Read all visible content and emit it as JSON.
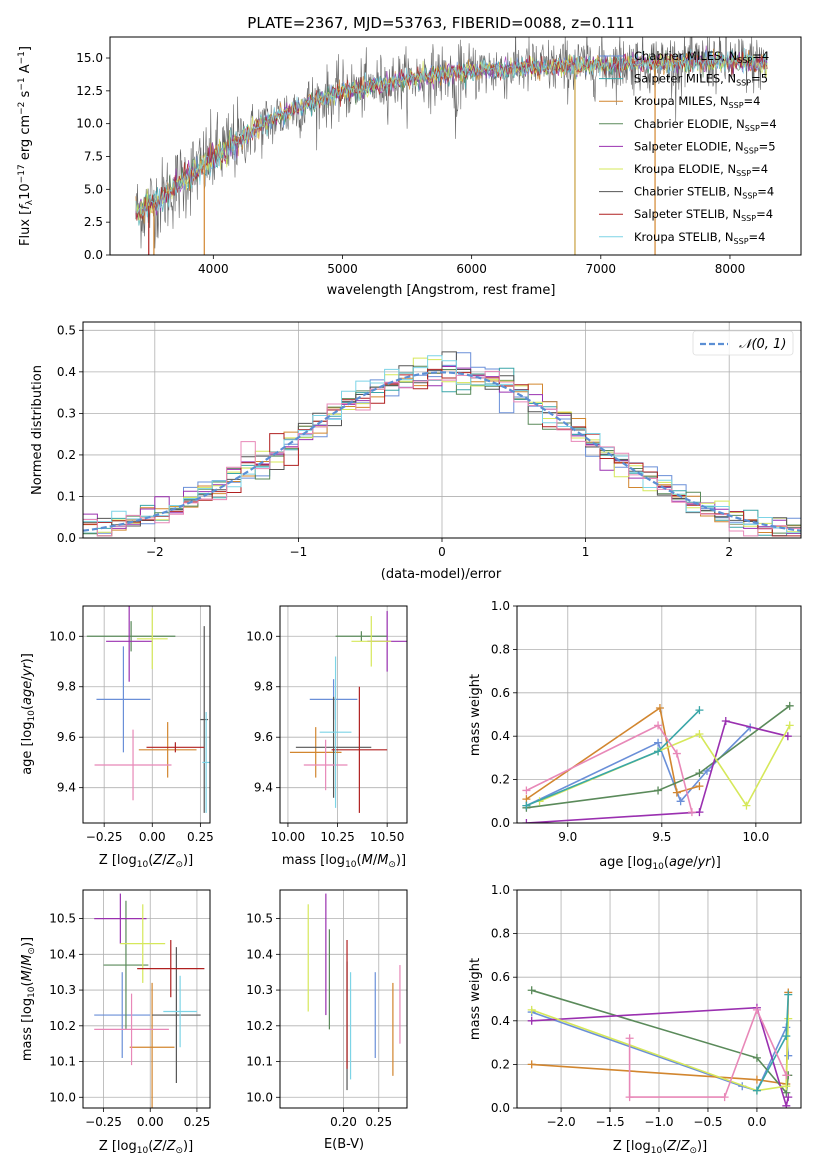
{
  "figure": {
    "title": "PLATE=2367, MJD=53763, FIBERID=0088, z=0.111"
  },
  "chart_data": [
    {
      "type": "line",
      "id": "spectrum",
      "xlabel": "wavelength [Angstrom, rest frame]",
      "ylabel": "Flux [f_λ 10^-17 erg cm^-2 s^-1 A^-1]",
      "xlim": [
        3200,
        8550
      ],
      "ylim": [
        0,
        16.6
      ],
      "xticks": [
        4000,
        5000,
        6000,
        7000,
        8000
      ],
      "yticks": [
        0.0,
        2.5,
        5.0,
        7.5,
        10.0,
        12.5,
        15.0
      ],
      "grid": false,
      "legend_position": "top-right",
      "series": [
        {
          "name": "Chabrier MILES, N_SSP=4",
          "color": "#6a8fd8"
        },
        {
          "name": "Salpeter MILES, N_SSP=5",
          "color": "#3aa6a8"
        },
        {
          "name": "Kroupa MILES, N_SSP=4",
          "color": "#d2862f"
        },
        {
          "name": "Chabrier ELODIE, N_SSP=4",
          "color": "#5a8a5a"
        },
        {
          "name": "Salpeter ELODIE, N_SSP=5",
          "color": "#9a30b0"
        },
        {
          "name": "Kroupa ELODIE, N_SSP=4",
          "color": "#d6e85a"
        },
        {
          "name": "Chabrier STELIB, N_SSP=4",
          "color": "#555555"
        },
        {
          "name": "Salpeter STELIB, N_SSP=4",
          "color": "#b02020"
        },
        {
          "name": "Kroupa STELIB, N_SSP=4",
          "color": "#7dd4e6"
        }
      ],
      "continuum": {
        "x": [
          3400,
          3600,
          3800,
          4000,
          4200,
          4400,
          4600,
          4800,
          5000,
          5200,
          5400,
          5600,
          5800,
          6000,
          6200,
          6400,
          6600,
          6800,
          7000,
          7200,
          7400,
          7600,
          7800,
          8000,
          8200,
          8300
        ],
        "y": [
          3.2,
          4.3,
          6.0,
          7.4,
          8.8,
          10.0,
          11.0,
          11.8,
          12.4,
          12.8,
          13.2,
          13.5,
          13.8,
          14.0,
          14.1,
          14.3,
          14.3,
          14.4,
          14.5,
          14.6,
          14.6,
          14.6,
          14.7,
          14.7,
          14.6,
          14.5
        ]
      },
      "dips": [
        3500,
        3540,
        3930,
        6800,
        7420
      ]
    },
    {
      "type": "histogram",
      "id": "residuals",
      "xlabel": "(data-model)/error",
      "ylabel": "Normed distribution",
      "xlim": [
        -2.5,
        2.5
      ],
      "ylim": [
        0,
        0.52
      ],
      "xticks": [
        -2,
        -1,
        0,
        1,
        2
      ],
      "yticks": [
        0.0,
        0.1,
        0.2,
        0.3,
        0.4,
        0.5
      ],
      "grid": true,
      "bin_width": 0.1,
      "reference": {
        "name": "N(0,1)",
        "color": "#5b8fd4"
      },
      "legend_position": "top-right"
    },
    {
      "type": "scatter",
      "id": "age-vs-z",
      "xlabel": "Z [log10(Z/Z_sun)]",
      "ylabel": "age [log10(age/yr)]",
      "xlim": [
        -0.36,
        0.3
      ],
      "ylim": [
        9.26,
        10.12
      ],
      "xticks": [
        -0.25,
        0.0,
        0.25
      ],
      "yticks": [
        9.4,
        9.6,
        9.8,
        10.0
      ],
      "grid": true,
      "points": [
        {
          "color": "#6a8fd8",
          "x": -0.15,
          "xerr": 0.14,
          "y": 9.75,
          "yerr": 0.21
        },
        {
          "color": "#d2862f",
          "x": 0.08,
          "xerr": 0.15,
          "y": 9.55,
          "yerr": 0.11
        },
        {
          "color": "#5a8a5a",
          "x": -0.11,
          "xerr": 0.23,
          "y": 10.0,
          "yerr": 0.06
        },
        {
          "color": "#9a30b0",
          "x": -0.12,
          "xerr": 0.12,
          "y": 9.98,
          "yerr": 0.16
        },
        {
          "color": "#d6e85a",
          "x": 0.0,
          "xerr": 0.08,
          "y": 9.99,
          "yerr": 0.12
        },
        {
          "color": "#555555",
          "x": 0.27,
          "xerr": 0.02,
          "y": 9.67,
          "yerr": 0.37
        },
        {
          "color": "#b02020",
          "x": 0.12,
          "xerr": 0.15,
          "y": 9.56,
          "yerr": 0.02
        },
        {
          "color": "#e888b8",
          "x": -0.1,
          "xerr": 0.2,
          "y": 9.49,
          "yerr": 0.14
        },
        {
          "color": "#7dd4e6",
          "x": 0.28,
          "xerr": 0.02,
          "y": 9.5,
          "yerr": 0.2
        }
      ]
    },
    {
      "type": "scatter",
      "id": "age-vs-mass",
      "xlabel": "mass [log10(M/M_sun)]",
      "ylabel": "",
      "xlim": [
        9.96,
        10.6
      ],
      "ylim": [
        9.26,
        10.12
      ],
      "xticks": [
        10.0,
        10.25,
        10.5
      ],
      "yticks": [
        9.4,
        9.6,
        9.8,
        10.0
      ],
      "grid": true,
      "points": [
        {
          "color": "#6a8fd8",
          "x": 10.23,
          "xerr": 0.12,
          "y": 9.75,
          "yerr": 0.08
        },
        {
          "color": "#d2862f",
          "x": 10.14,
          "xerr": 0.13,
          "y": 9.54,
          "yerr": 0.1
        },
        {
          "color": "#5a8a5a",
          "x": 10.37,
          "xerr": 0.13,
          "y": 10.0,
          "yerr": 0.02
        },
        {
          "color": "#9a30b0",
          "x": 10.5,
          "xerr": 0.1,
          "y": 9.98,
          "yerr": 0.12
        },
        {
          "color": "#d6e85a",
          "x": 10.42,
          "xerr": 0.1,
          "y": 9.98,
          "yerr": 0.1
        },
        {
          "color": "#555555",
          "x": 10.23,
          "xerr": 0.19,
          "y": 9.56,
          "yerr": 0.2
        },
        {
          "color": "#b02020",
          "x": 10.36,
          "xerr": 0.14,
          "y": 9.55,
          "yerr": 0.25
        },
        {
          "color": "#e888b8",
          "x": 10.19,
          "xerr": 0.11,
          "y": 9.49,
          "yerr": 0.1
        },
        {
          "color": "#7dd4e6",
          "x": 10.24,
          "xerr": 0.08,
          "y": 9.62,
          "yerr": 0.3
        }
      ]
    },
    {
      "type": "line",
      "id": "mass-weight-vs-age",
      "xlabel": "age [log10(age/yr)]",
      "ylabel": "mass weight",
      "xlim": [
        8.73,
        10.24
      ],
      "ylim": [
        0,
        1.0
      ],
      "xticks": [
        9.0,
        9.5,
        10.0
      ],
      "yticks": [
        0.0,
        0.2,
        0.4,
        0.6,
        0.8,
        1.0
      ],
      "grid": true,
      "series": [
        {
          "color": "#6a8fd8",
          "x": [
            8.78,
            9.48,
            9.6,
            9.74,
            9.97
          ],
          "y": [
            0.08,
            0.37,
            0.1,
            0.24,
            0.44
          ]
        },
        {
          "color": "#d2862f",
          "x": [
            8.78,
            9.49,
            9.58,
            9.7
          ],
          "y": [
            0.11,
            0.53,
            0.14,
            0.17
          ]
        },
        {
          "color": "#5a8a5a",
          "x": [
            8.78,
            9.48,
            9.7,
            10.18
          ],
          "y": [
            0.07,
            0.15,
            0.23,
            0.54
          ]
        },
        {
          "color": "#9a30b0",
          "x": [
            8.78,
            9.7,
            9.84,
            10.17
          ],
          "y": [
            0.0,
            0.05,
            0.47,
            0.4
          ]
        },
        {
          "color": "#d6e85a",
          "x": [
            8.85,
            9.48,
            9.7,
            9.95,
            10.18
          ],
          "y": [
            0.1,
            0.33,
            0.41,
            0.08,
            0.45
          ]
        },
        {
          "color": "#3aa6a8",
          "x": [
            8.78,
            9.48,
            9.7
          ],
          "y": [
            0.08,
            0.33,
            0.52
          ]
        },
        {
          "color": "#e888b8",
          "x": [
            8.78,
            9.48,
            9.58,
            9.66
          ],
          "y": [
            0.15,
            0.45,
            0.32,
            0.05
          ]
        }
      ]
    },
    {
      "type": "scatter",
      "id": "mass-vs-z",
      "xlabel": "Z [log10(Z/Z_sun)]",
      "ylabel": "mass [log10(M/M_sun)]",
      "xlim": [
        -0.36,
        0.32
      ],
      "ylim": [
        9.97,
        10.58
      ],
      "xticks": [
        -0.25,
        0.0,
        0.25
      ],
      "yticks": [
        10.0,
        10.1,
        10.2,
        10.3,
        10.4,
        10.5
      ],
      "grid": true,
      "points": [
        {
          "color": "#6a8fd8",
          "x": -0.15,
          "xerr": 0.15,
          "y": 10.23,
          "yerr": 0.12
        },
        {
          "color": "#d2862f",
          "x": 0.01,
          "xerr": 0.12,
          "y": 10.14,
          "yerr": 0.18
        },
        {
          "color": "#5a8a5a",
          "x": -0.13,
          "xerr": 0.12,
          "y": 10.37,
          "yerr": 0.18
        },
        {
          "color": "#9a30b0",
          "x": -0.16,
          "xerr": 0.14,
          "y": 10.5,
          "yerr": 0.07
        },
        {
          "color": "#d6e85a",
          "x": -0.04,
          "xerr": 0.12,
          "y": 10.43,
          "yerr": 0.11
        },
        {
          "color": "#555555",
          "x": 0.14,
          "xerr": 0.13,
          "y": 10.23,
          "yerr": 0.19
        },
        {
          "color": "#b02020",
          "x": 0.11,
          "xerr": 0.18,
          "y": 10.36,
          "yerr": 0.08
        },
        {
          "color": "#e888b8",
          "x": -0.1,
          "xerr": 0.2,
          "y": 10.19,
          "yerr": 0.1
        },
        {
          "color": "#7dd4e6",
          "x": 0.16,
          "xerr": 0.09,
          "y": 10.24,
          "yerr": 0.1
        }
      ]
    },
    {
      "type": "scatter",
      "id": "mass-vs-ebv",
      "xlabel": "E(B-V)",
      "ylabel": "",
      "xlim": [
        0.11,
        0.29
      ],
      "ylim": [
        9.97,
        10.58
      ],
      "xticks": [
        0.2,
        0.25
      ],
      "yticks": [
        10.0,
        10.1,
        10.2,
        10.3,
        10.4,
        10.5
      ],
      "grid": true,
      "points": [
        {
          "color": "#6a8fd8",
          "x": 0.245,
          "xerr": 0,
          "y": 10.23,
          "yerr": 0.12
        },
        {
          "color": "#d2862f",
          "x": 0.27,
          "xerr": 0,
          "y": 10.19,
          "yerr": 0.13
        },
        {
          "color": "#5a8a5a",
          "x": 0.18,
          "xerr": 0,
          "y": 10.33,
          "yerr": 0.14
        },
        {
          "color": "#9a30b0",
          "x": 0.175,
          "xerr": 0,
          "y": 10.4,
          "yerr": 0.17
        },
        {
          "color": "#d6e85a",
          "x": 0.15,
          "xerr": 0,
          "y": 10.39,
          "yerr": 0.15
        },
        {
          "color": "#555555",
          "x": 0.205,
          "xerr": 0,
          "y": 10.2,
          "yerr": 0.18
        },
        {
          "color": "#b02020",
          "x": 0.205,
          "xerr": 0,
          "y": 10.26,
          "yerr": 0.18
        },
        {
          "color": "#e888b8",
          "x": 0.28,
          "xerr": 0,
          "y": 10.26,
          "yerr": 0.11
        },
        {
          "color": "#7dd4e6",
          "x": 0.21,
          "xerr": 0,
          "y": 10.2,
          "yerr": 0.15
        }
      ]
    },
    {
      "type": "line",
      "id": "mass-weight-vs-z",
      "xlabel": "Z [log10(Z/Z_sun)]",
      "ylabel": "mass weight",
      "xlim": [
        -2.45,
        0.45
      ],
      "ylim": [
        0,
        1.0
      ],
      "xticks": [
        -2.0,
        -1.5,
        -1.0,
        -0.5,
        0.0
      ],
      "yticks": [
        0.0,
        0.2,
        0.4,
        0.6,
        0.8,
        1.0
      ],
      "grid": true,
      "series": [
        {
          "color": "#6a8fd8",
          "x": [
            -2.3,
            -0.15,
            0.0,
            0.3,
            0.32
          ],
          "y": [
            0.44,
            0.1,
            0.08,
            0.37,
            0.24
          ]
        },
        {
          "color": "#d2862f",
          "x": [
            -2.3,
            0.0,
            0.3,
            0.32
          ],
          "y": [
            0.2,
            0.13,
            0.11,
            0.53
          ]
        },
        {
          "color": "#5a8a5a",
          "x": [
            -2.3,
            0.0,
            0.3,
            0.32
          ],
          "y": [
            0.54,
            0.23,
            0.07,
            0.15
          ]
        },
        {
          "color": "#9a30b0",
          "x": [
            -2.3,
            0.0,
            0.3,
            0.32
          ],
          "y": [
            0.4,
            0.46,
            0.01,
            0.05
          ]
        },
        {
          "color": "#d6e85a",
          "x": [
            -2.3,
            0.0,
            0.3,
            0.32
          ],
          "y": [
            0.45,
            0.08,
            0.1,
            0.41
          ]
        },
        {
          "color": "#3aa6a8",
          "x": [
            0.0,
            0.3,
            0.32
          ],
          "y": [
            0.08,
            0.33,
            0.52
          ]
        },
        {
          "color": "#e888b8",
          "x": [
            -1.3,
            -1.3,
            -0.33,
            0.0,
            0.3
          ],
          "y": [
            0.32,
            0.05,
            0.05,
            0.45,
            0.15
          ]
        }
      ]
    }
  ]
}
